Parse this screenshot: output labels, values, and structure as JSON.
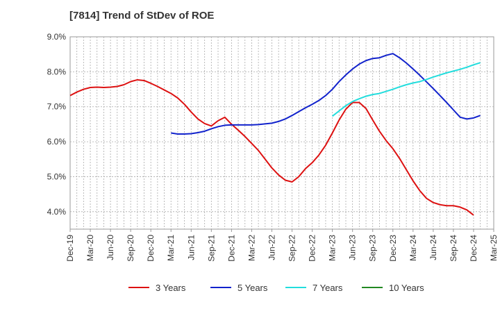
{
  "chart_data": {
    "type": "line",
    "title": "[7814]  Trend of StDev of ROE",
    "xlabel": "",
    "ylabel": "",
    "x_ticks": [
      "Dec-19",
      "Mar-20",
      "Jun-20",
      "Sep-20",
      "Dec-20",
      "Mar-21",
      "Jun-21",
      "Sep-21",
      "Dec-21",
      "Mar-22",
      "Jun-22",
      "Sep-22",
      "Dec-22",
      "Mar-23",
      "Jun-23",
      "Sep-23",
      "Dec-23",
      "Mar-24",
      "Jun-24",
      "Sep-24",
      "Dec-24",
      "Mar-25"
    ],
    "y_ticks": [
      "4.0%",
      "5.0%",
      "6.0%",
      "7.0%",
      "8.0%",
      "9.0%"
    ],
    "ylim": [
      3.5,
      9.0
    ],
    "grid": true,
    "legend_position": "bottom",
    "series": [
      {
        "name": "3 Years",
        "color": "#dd1111",
        "start_index": 0,
        "values": [
          7.32,
          7.42,
          7.5,
          7.55,
          7.56,
          7.55,
          7.56,
          7.58,
          7.63,
          7.72,
          7.77,
          7.75,
          7.67,
          7.58,
          7.48,
          7.38,
          7.25,
          7.07,
          6.85,
          6.65,
          6.52,
          6.45,
          6.6,
          6.7,
          6.5,
          6.33,
          6.15,
          5.95,
          5.75,
          5.5,
          5.25,
          5.05,
          4.9,
          4.85,
          5.0,
          5.23,
          5.4,
          5.62,
          5.9,
          6.25,
          6.62,
          6.93,
          7.12,
          7.12,
          6.95,
          6.62,
          6.3,
          6.03,
          5.8,
          5.52,
          5.2,
          4.88,
          4.6,
          4.38,
          4.26,
          4.2,
          4.17,
          4.17,
          4.13,
          4.05,
          3.9
        ]
      },
      {
        "name": "5 Years",
        "color": "#1122cc",
        "start_index": 15,
        "values": [
          6.25,
          6.22,
          6.22,
          6.23,
          6.26,
          6.3,
          6.37,
          6.43,
          6.47,
          6.48,
          6.48,
          6.48,
          6.48,
          6.49,
          6.51,
          6.53,
          6.58,
          6.65,
          6.75,
          6.86,
          6.97,
          7.07,
          7.18,
          7.32,
          7.5,
          7.72,
          7.91,
          8.08,
          8.22,
          8.32,
          8.38,
          8.4,
          8.47,
          8.52,
          8.4,
          8.25,
          8.08,
          7.9,
          7.71,
          7.52,
          7.32,
          7.12,
          6.91,
          6.7,
          6.65,
          6.68,
          6.75
        ]
      },
      {
        "name": "7 Years",
        "color": "#22dddd",
        "start_index": 39,
        "values": [
          6.73,
          6.88,
          7.03,
          7.15,
          7.23,
          7.3,
          7.35,
          7.38,
          7.44,
          7.5,
          7.57,
          7.63,
          7.68,
          7.72,
          7.78,
          7.85,
          7.91,
          7.97,
          8.02,
          8.07,
          8.13,
          8.2,
          8.26
        ]
      },
      {
        "name": "10 Years",
        "color": "#228822",
        "start_index": 0,
        "values": []
      }
    ]
  }
}
